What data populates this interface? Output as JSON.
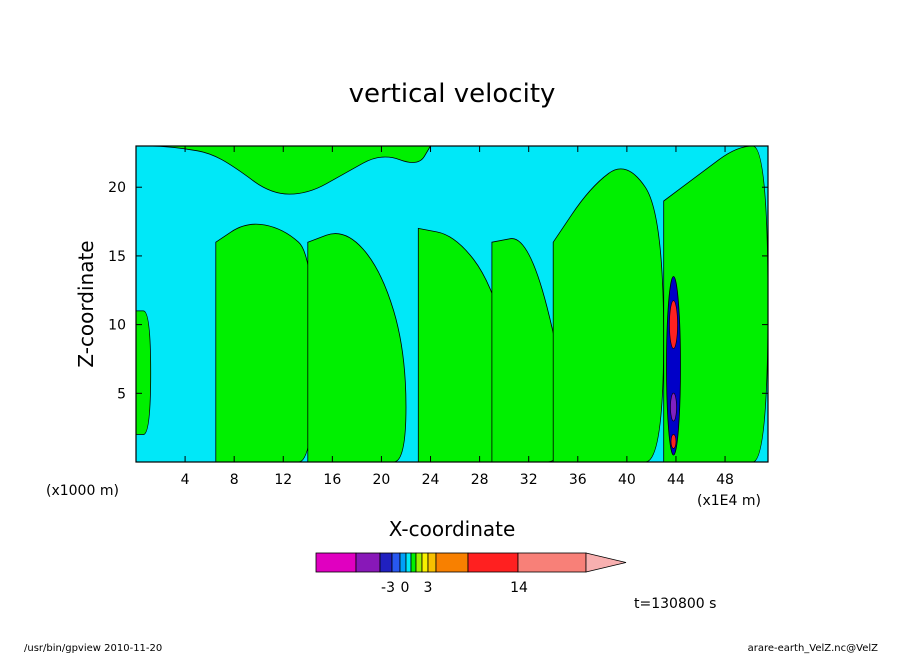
{
  "chart_data": {
    "type": "heatmap",
    "title": "vertical velocity",
    "xlabel": "X-coordinate",
    "ylabel": "Z-coordinate",
    "x_unit_left": "(x1000 m)",
    "x_unit_right": "(x1E4 m)",
    "xlim": [
      0,
      51.5
    ],
    "ylim": [
      0,
      23
    ],
    "x_ticks": [
      "4",
      "8",
      "12",
      "16",
      "20",
      "24",
      "28",
      "32",
      "36",
      "40",
      "44",
      "48"
    ],
    "x_tick_values": [
      4,
      8,
      12,
      16,
      20,
      24,
      28,
      32,
      36,
      40,
      44,
      48
    ],
    "y_ticks": [
      "5",
      "10",
      "15",
      "20"
    ],
    "y_tick_values": [
      5,
      10,
      15,
      20
    ],
    "colors": {
      "negative": "#00e8f8",
      "positive": "#00f000",
      "contour": "#000000",
      "core_red": "#ff2020",
      "core_blue": "#0000c8",
      "core_purple": "#8020c0"
    },
    "upward_regions": [
      {
        "x": [
          0,
          2,
          4,
          6,
          8,
          11,
          14,
          17,
          20,
          23,
          24
        ],
        "z_top": [
          23,
          23,
          22.8,
          22.5,
          21.5,
          19.5,
          19.5,
          21,
          22.5,
          21.5,
          23
        ]
      },
      {
        "x": [
          0,
          1.2
        ],
        "z_bottom": [
          2,
          2
        ],
        "z_top": [
          11,
          11
        ]
      },
      {
        "x": [
          6.5,
          9,
          12,
          14.5
        ],
        "z_bottom": [
          0,
          0,
          0,
          0
        ],
        "z_top": [
          16,
          17.5,
          17,
          15
        ]
      },
      {
        "x": [
          14,
          17,
          20,
          22
        ],
        "z_bottom": [
          0,
          0,
          0,
          0
        ],
        "z_top": [
          16,
          17,
          14,
          8
        ]
      },
      {
        "x": [
          23,
          26,
          29,
          31
        ],
        "z_bottom": [
          0,
          0,
          0,
          0
        ],
        "z_top": [
          17,
          16.5,
          13,
          6
        ]
      },
      {
        "x": [
          29,
          32,
          35
        ],
        "z_bottom": [
          0,
          0,
          0
        ],
        "z_top": [
          16,
          16.5,
          6
        ]
      },
      {
        "x": [
          34,
          37,
          40,
          43
        ],
        "z_bottom": [
          0,
          0,
          0,
          0
        ],
        "z_top": [
          16,
          20,
          22,
          18
        ]
      },
      {
        "x": [
          43,
          46,
          49,
          51.5
        ],
        "z_bottom": [
          0,
          0,
          0,
          0
        ],
        "z_top": [
          19,
          21,
          23,
          23
        ]
      }
    ],
    "core": {
      "x": 43.8,
      "z_bottom": 0.5,
      "z_top": 13.5,
      "max": 14
    },
    "colorbar": {
      "colors": [
        "#e000c0",
        "#8818b8",
        "#2020c0",
        "#2858f0",
        "#00a0f8",
        "#00e8f8",
        "#00f000",
        "#a0f000",
        "#f8f000",
        "#f8c000",
        "#f88000",
        "#ff2020",
        "#f88078",
        "#f8b0b0"
      ],
      "labels": [
        "-3",
        "0",
        "3",
        "14"
      ],
      "label_index": [
        3,
        5,
        7,
        11
      ]
    },
    "time_label": "t=130800 s"
  },
  "footer": {
    "left": "/usr/bin/gpview   2010-11-20",
    "right": "arare-earth_VelZ.nc@VelZ"
  }
}
